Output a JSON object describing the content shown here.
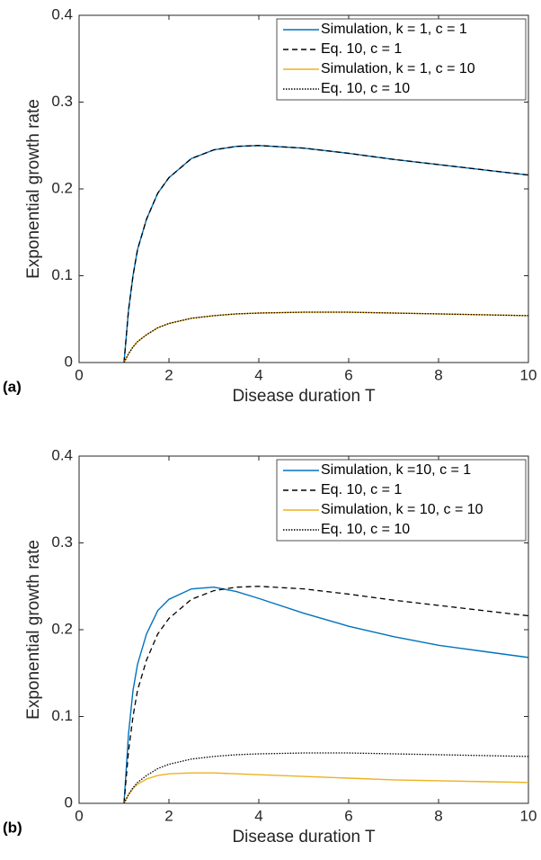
{
  "chart_data": [
    {
      "type": "line",
      "panel_label": "(a)",
      "xlabel": "Disease duration T",
      "ylabel": "Exponential growth rate",
      "xlim": [
        0,
        10
      ],
      "xticks": [
        0,
        2,
        4,
        6,
        8,
        10
      ],
      "ylim": [
        0,
        0.4
      ],
      "yticks": [
        0,
        0.1,
        0.2,
        0.3,
        0.4
      ],
      "legend": "upper right",
      "grid": false,
      "x": [
        1,
        1.1,
        1.2,
        1.3,
        1.5,
        1.75,
        2,
        2.5,
        3,
        3.5,
        4,
        5,
        6,
        7,
        8,
        9,
        10
      ],
      "series": [
        {
          "name": "Simulation, k = 1, c = 1",
          "color": "#0072bd",
          "linestyle": "solid",
          "values": [
            0,
            0.06,
            0.1,
            0.13,
            0.165,
            0.195,
            0.213,
            0.235,
            0.245,
            0.249,
            0.25,
            0.247,
            0.241,
            0.234,
            0.228,
            0.222,
            0.216
          ]
        },
        {
          "name": "Eq. 10, c = 1",
          "color": "#000000",
          "linestyle": "dashed",
          "values": [
            0,
            0.06,
            0.1,
            0.13,
            0.165,
            0.195,
            0.213,
            0.235,
            0.245,
            0.249,
            0.25,
            0.247,
            0.241,
            0.234,
            0.228,
            0.222,
            0.216
          ]
        },
        {
          "name": "Simulation, k = 1, c = 10",
          "color": "#edb120",
          "linestyle": "solid",
          "values": [
            0,
            0.01,
            0.018,
            0.024,
            0.032,
            0.04,
            0.045,
            0.051,
            0.054,
            0.056,
            0.057,
            0.058,
            0.058,
            0.057,
            0.056,
            0.055,
            0.054
          ]
        },
        {
          "name": "Eq. 10, c = 10",
          "color": "#000000",
          "linestyle": "dotted",
          "values": [
            0,
            0.01,
            0.018,
            0.024,
            0.032,
            0.04,
            0.045,
            0.051,
            0.054,
            0.056,
            0.057,
            0.058,
            0.058,
            0.057,
            0.056,
            0.055,
            0.054
          ]
        }
      ]
    },
    {
      "type": "line",
      "panel_label": "(b)",
      "xlabel": "Disease duration T",
      "ylabel": "Exponential growth rate",
      "xlim": [
        0,
        10
      ],
      "xticks": [
        0,
        2,
        4,
        6,
        8,
        10
      ],
      "ylim": [
        0,
        0.4
      ],
      "yticks": [
        0,
        0.1,
        0.2,
        0.3,
        0.4
      ],
      "legend": "upper right",
      "grid": false,
      "x": [
        1,
        1.1,
        1.2,
        1.3,
        1.5,
        1.75,
        2,
        2.5,
        3,
        3.5,
        4,
        5,
        6,
        7,
        8,
        9,
        10
      ],
      "series": [
        {
          "name": "Simulation, k =10, c = 1",
          "color": "#0072bd",
          "linestyle": "solid",
          "values": [
            0,
            0.08,
            0.13,
            0.16,
            0.195,
            0.222,
            0.235,
            0.247,
            0.249,
            0.244,
            0.236,
            0.219,
            0.204,
            0.192,
            0.182,
            0.175,
            0.168
          ]
        },
        {
          "name": "Eq. 10, c = 1",
          "color": "#000000",
          "linestyle": "dashed",
          "values": [
            0,
            0.06,
            0.1,
            0.13,
            0.165,
            0.195,
            0.213,
            0.235,
            0.245,
            0.249,
            0.25,
            0.247,
            0.241,
            0.234,
            0.228,
            0.222,
            0.216
          ]
        },
        {
          "name": "Simulation, k = 10, c = 10",
          "color": "#edb120",
          "linestyle": "solid",
          "values": [
            0,
            0.01,
            0.017,
            0.022,
            0.028,
            0.032,
            0.034,
            0.035,
            0.035,
            0.034,
            0.033,
            0.031,
            0.029,
            0.027,
            0.026,
            0.025,
            0.024
          ]
        },
        {
          "name": "Eq. 10, c = 10",
          "color": "#000000",
          "linestyle": "dotted",
          "values": [
            0,
            0.01,
            0.018,
            0.024,
            0.032,
            0.04,
            0.045,
            0.051,
            0.054,
            0.056,
            0.057,
            0.058,
            0.058,
            0.057,
            0.056,
            0.055,
            0.054
          ]
        }
      ]
    }
  ]
}
